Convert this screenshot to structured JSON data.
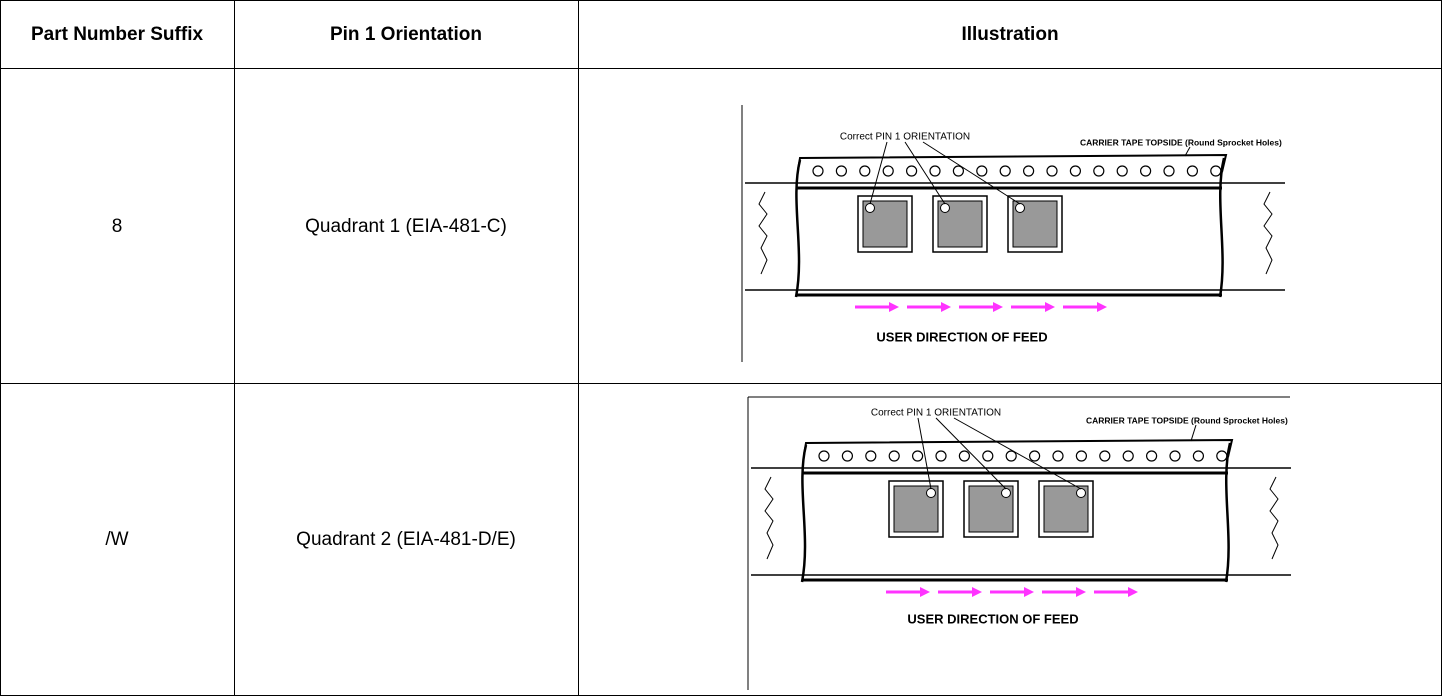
{
  "table": {
    "headers": [
      "Part Number Suffix",
      "Pin 1 Orientation",
      "Illustration"
    ],
    "rows": [
      {
        "suffix": "8",
        "orientation": "Quadrant 1 (EIA-481-C)",
        "illustration": {
          "pin_label": "Correct PIN 1 ORIENTATION",
          "tape_label": "CARRIER TAPE TOPSIDE (Round Sprocket Holes)",
          "feed_label": "USER DIRECTION OF FEED"
        }
      },
      {
        "suffix": "/W",
        "orientation": "Quadrant 2 (EIA-481-D/E)",
        "illustration": {
          "pin_label": "Correct PIN 1 ORIENTATION",
          "tape_label": "CARRIER TAPE TOPSIDE (Round Sprocket Holes)",
          "feed_label": "USER DIRECTION OF FEED"
        }
      }
    ]
  }
}
